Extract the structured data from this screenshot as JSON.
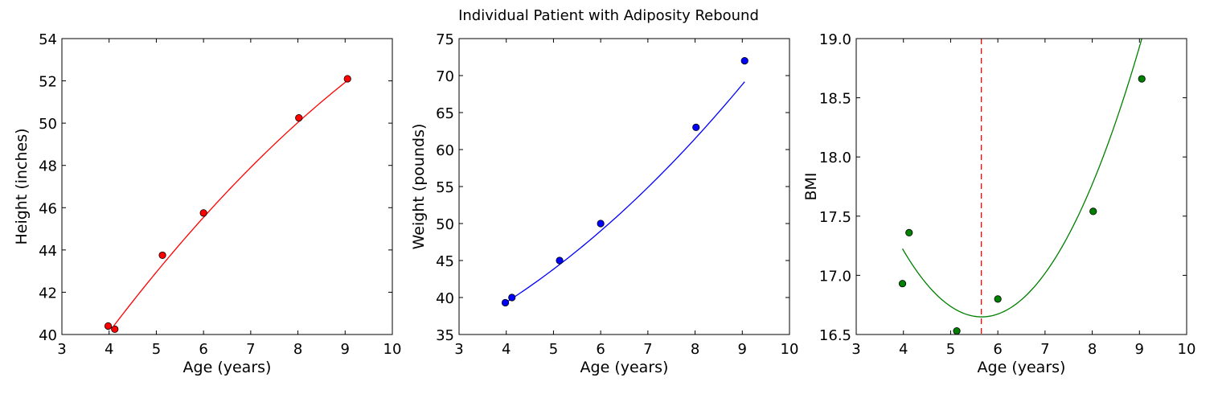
{
  "figure": {
    "suptitle": "Individual Patient with Adiposity Rebound"
  },
  "chart_data": [
    {
      "type": "scatter",
      "title": "",
      "xlabel": "Age (years)",
      "ylabel": "Height (inches)",
      "xlim": [
        3,
        10
      ],
      "ylim": [
        40,
        54
      ],
      "xticks": [
        "3",
        "4",
        "5",
        "6",
        "7",
        "8",
        "9",
        "10"
      ],
      "yticks": [
        "40",
        "42",
        "44",
        "46",
        "48",
        "50",
        "52",
        "54"
      ],
      "grid": false,
      "color": "#ff0000",
      "points": {
        "x": [
          3.98,
          4.12,
          5.13,
          6.0,
          8.02,
          9.05
        ],
        "y": [
          40.4,
          40.25,
          43.75,
          45.75,
          50.25,
          52.1
        ]
      },
      "fit": {
        "type": "line",
        "coeffs": [
          -0.1165,
          3.876,
          26.48
        ],
        "xrange": [
          4.1,
          9.05
        ]
      }
    },
    {
      "type": "scatter",
      "title": "",
      "xlabel": "Age (years)",
      "ylabel": "Weight (pounds)",
      "xlim": [
        3,
        10
      ],
      "ylim": [
        35,
        75
      ],
      "xticks": [
        "3",
        "4",
        "5",
        "6",
        "7",
        "8",
        "9",
        "10"
      ],
      "yticks": [
        "35",
        "40",
        "45",
        "50",
        "55",
        "60",
        "65",
        "70",
        "75"
      ],
      "grid": false,
      "color": "#0000ff",
      "points": {
        "x": [
          3.98,
          4.12,
          5.13,
          6.0,
          8.02,
          9.05
        ],
        "y": [
          39.3,
          40.0,
          45.0,
          50.0,
          63.0,
          72.0
        ]
      },
      "fit": {
        "type": "line",
        "coeffs": [
          0.355,
          1.27,
          28.6
        ],
        "xrange": [
          3.98,
          9.05
        ]
      }
    },
    {
      "type": "scatter",
      "title": "",
      "xlabel": "Age (years)",
      "ylabel": "BMI",
      "xlim": [
        3,
        10
      ],
      "ylim": [
        16.5,
        19.0
      ],
      "xticks": [
        "3",
        "4",
        "5",
        "6",
        "7",
        "8",
        "9",
        "10"
      ],
      "yticks": [
        "16.5",
        "17.0",
        "17.5",
        "18.0",
        "18.5",
        "19.0"
      ],
      "grid": false,
      "color": "#008000",
      "points": {
        "x": [
          3.98,
          4.12,
          5.13,
          6.0,
          8.02,
          9.05
        ],
        "y": [
          16.93,
          17.36,
          16.53,
          16.8,
          17.54,
          18.66
        ]
      },
      "fit": {
        "type": "line",
        "coeffs": [
          0.2043,
          -2.312,
          23.19
        ],
        "xrange": [
          3.98,
          9.05
        ]
      },
      "vline": {
        "x": 5.65,
        "color": "#ff0000",
        "style": "dashed"
      }
    }
  ]
}
